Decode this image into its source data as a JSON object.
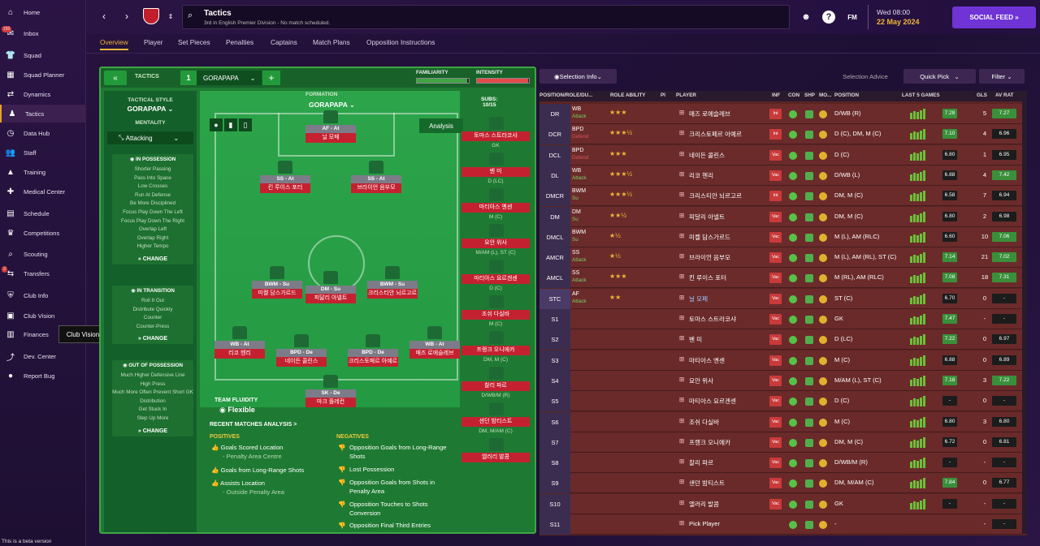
{
  "sidebar": {
    "items": [
      {
        "label": "Home"
      },
      {
        "label": "Inbox",
        "badge": "150"
      },
      {
        "label": "Squad"
      },
      {
        "label": "Squad Planner"
      },
      {
        "label": "Dynamics"
      },
      {
        "label": "Tactics"
      },
      {
        "label": "Data Hub"
      },
      {
        "label": "Staff"
      },
      {
        "label": "Training"
      },
      {
        "label": "Medical Center"
      },
      {
        "label": "Schedule"
      },
      {
        "label": "Competitions"
      },
      {
        "label": "Scouting"
      },
      {
        "label": "Transfers",
        "badge": "3"
      },
      {
        "label": "Club Info"
      },
      {
        "label": "Club Vision"
      },
      {
        "label": "Finances"
      },
      {
        "label": "Dev. Center"
      },
      {
        "label": "Report Bug"
      }
    ],
    "tooltip": "Club Vision",
    "beta": "This is a beta version"
  },
  "header": {
    "title": "Tactics",
    "subtitle": "3rd in English Premier Division - No match scheduled.",
    "date_day": "Wed 08:00",
    "date": "22 May 2024",
    "social": "SOCIAL FEED"
  },
  "tabs": [
    {
      "label": "Overview"
    },
    {
      "label": "Player"
    },
    {
      "label": "Set Pieces"
    },
    {
      "label": "Penalties"
    },
    {
      "label": "Captains"
    },
    {
      "label": "Match Plans"
    },
    {
      "label": "Opposition Instructions"
    }
  ],
  "tactics": {
    "label": "TACTICS",
    "number": "1",
    "name": "GORAPAPA",
    "familiarity": "FAMILIARITY",
    "intensity": "INTENSITY",
    "familiarity_level": 0.97,
    "intensity_level": 0.98,
    "style_title": "TACTICAL STYLE",
    "style": "GORAPAPA",
    "mentality_title": "MENTALITY",
    "mentality": "Attacking",
    "in_possession": {
      "title": "IN POSSESSION",
      "items": [
        "Shorter Passing",
        "Pass Into Space",
        "Low Crosses",
        "Run At Defense",
        "Be More Disciplined",
        "Focus Play Down The Left",
        "Focus Play Down The Right",
        "Overlap Left",
        "Overlap Right",
        "Higher Tempo"
      ]
    },
    "in_transition": {
      "title": "IN TRANSITION",
      "items": [
        "Roll It Out",
        "Distribute Quickly",
        "Counter",
        "Counter-Press"
      ]
    },
    "out_possession": {
      "title": "OUT OF POSSESSION",
      "items": [
        "Much Higher Defensive Line",
        "High Press",
        "Much More Often Prevent Short GK Distribution",
        "Get Stuck In",
        "Step Up More"
      ]
    },
    "change": "CHANGE",
    "formation_label": "FORMATION",
    "formation": "GORAPAPA",
    "analysis": "Analysis",
    "subs_label": "SUBS:",
    "subs_count": "10/15",
    "fluidity_label": "TEAM FLUIDITY",
    "fluidity": "Flexible",
    "recent": "RECENT MATCHES ANALYSIS >",
    "positives_label": "POSITIVES",
    "negatives_label": "NEGATIVES",
    "positives": [
      {
        "t": "Goals Scored Location",
        "s": "- Penalty Area Centre"
      },
      {
        "t": "Goals from Long-Range Shots",
        "s": ""
      },
      {
        "t": "Assists Location",
        "s": "- Outside Penalty Area"
      }
    ],
    "negatives": [
      {
        "t": "Opposition Goals from Long-Range Shots"
      },
      {
        "t": "Lost Possession"
      },
      {
        "t": "Opposition Goals from Shots in Penalty Area"
      },
      {
        "t": "Opposition Touches to Shots Conversion"
      },
      {
        "t": "Opposition Final Third Entries"
      }
    ]
  },
  "pitch_players": [
    {
      "role": "AF - At",
      "name": "닐 모페"
    },
    {
      "role": "SS - At",
      "name": "킨 루이스 포터"
    },
    {
      "role": "SS - At",
      "name": "브라이언 음부모"
    },
    {
      "role": "BWM - Su",
      "name": "미켈 담스가르드"
    },
    {
      "role": "DM - Su",
      "name": "피달리 아넬트"
    },
    {
      "role": "BWM - Su",
      "name": "크리스티안 뇌르고르"
    },
    {
      "role": "WB - At",
      "name": "리코 헨리"
    },
    {
      "role": "BPD - De",
      "name": "네이든 콜린스"
    },
    {
      "role": "BPD - De",
      "name": "크리스토페르 아예르"
    },
    {
      "role": "WB - At",
      "name": "매즈 로에슬레브"
    },
    {
      "role": "SK - De",
      "name": "마크 플레컨"
    }
  ],
  "subs": [
    {
      "name": "토마스 스트라코샤",
      "pos": "GK"
    },
    {
      "name": "벤 미",
      "pos": "D (LC)"
    },
    {
      "name": "마티아스 옌센",
      "pos": "M (C)"
    },
    {
      "name": "요안 위사",
      "pos": "M/AM (L), ST (C)"
    },
    {
      "name": "마티아스 요르겐센",
      "pos": "D (C)"
    },
    {
      "name": "조쉬 다실바",
      "pos": "M (C)"
    },
    {
      "name": "프랭크 오니에카",
      "pos": "DM, M (C)"
    },
    {
      "name": "찰리 파르",
      "pos": "D/WB/M (R)"
    },
    {
      "name": "샌던 밤티스트",
      "pos": "DM, M/AM (C)"
    },
    {
      "name": "엘러리 발콤",
      "pos": ""
    }
  ],
  "list_controls": {
    "selection_info": "Selection Info",
    "selection_advice": "Selection Advice",
    "quick_pick": "Quick Pick",
    "filter": "Filter"
  },
  "columns": [
    "POSITION/ROLE/DU...",
    "ROLE ABILITY",
    "PI",
    "PLAYER",
    "INF",
    "CON",
    "SHP",
    "MO...",
    "POSITION",
    "LAST 5 GAMES",
    "GLS",
    "AV RAT"
  ],
  "rows": [
    {
      "pos": "DR",
      "role": "WB",
      "duty": "Attack",
      "stars": "★★★",
      "name": "매즈 로에슬레브",
      "inf": "Int",
      "position": "D/WB (R)",
      "rat": "7.28",
      "gls": "5",
      "av": "7.27"
    },
    {
      "pos": "DCR",
      "role": "BPD",
      "duty": "Defend",
      "stars": "★★★½",
      "name": "크리스토페르 아예르",
      "inf": "Int",
      "position": "D (C), DM, M (C)",
      "rat": "7.10",
      "gls": "4",
      "av": "6.96"
    },
    {
      "pos": "DCL",
      "role": "BPD",
      "duty": "Defend",
      "stars": "★★★",
      "name": "네이든 콜린스",
      "inf": "Vac",
      "position": "D (C)",
      "rat": "6.80",
      "gls": "1",
      "av": "6.95"
    },
    {
      "pos": "DL",
      "role": "WB",
      "duty": "Attack",
      "stars": "★★★½",
      "name": "리코 헨리",
      "inf": "Vac",
      "position": "D/WB (L)",
      "rat": "6.88",
      "gls": "4",
      "av": "7.42"
    },
    {
      "pos": "DMCR",
      "role": "BWM",
      "duty": "Su",
      "stars": "★★★½",
      "name": "크리스티안 뇌르고르",
      "inf": "Int",
      "position": "DM, M (C)",
      "rat": "6.58",
      "gls": "7",
      "av": "6.94"
    },
    {
      "pos": "DM",
      "role": "DM",
      "duty": "Su",
      "stars": "★★½",
      "name": "피달리 아넬트",
      "inf": "Vac",
      "position": "DM, M (C)",
      "rat": "6.80",
      "gls": "2",
      "av": "6.98"
    },
    {
      "pos": "DMCL",
      "role": "BWM",
      "duty": "Su",
      "stars": "★½",
      "name": "미켈 담스가르드",
      "inf": "Vac",
      "position": "M (L), AM (RLC)",
      "rat": "6.60",
      "gls": "10",
      "av": "7.06"
    },
    {
      "pos": "AMCR",
      "role": "SS",
      "duty": "Attack",
      "stars": "★½",
      "name": "브라이언 음부모",
      "inf": "Vac",
      "position": "M (L), AM (RL), ST (C)",
      "rat": "7.14",
      "gls": "21",
      "av": "7.02"
    },
    {
      "pos": "AMCL",
      "role": "SS",
      "duty": "Attack",
      "stars": "★★★",
      "name": "킨 루이스 포터",
      "inf": "Vac",
      "position": "M (RL), AM (RLC)",
      "rat": "7.08",
      "gls": "18",
      "av": "7.31"
    },
    {
      "pos": "STC",
      "role": "AF",
      "duty": "Attack",
      "stars": "★★",
      "name": "닐 모페",
      "inf": "Vac",
      "position": "ST (C)",
      "rat": "6.70",
      "gls": "0",
      "av": "-"
    },
    {
      "pos": "S1",
      "role": "",
      "duty": "",
      "stars": "",
      "name": "토마스 스트라코샤",
      "inf": "Vac",
      "position": "GK",
      "rat": "7.47",
      "gls": "-",
      "av": "-"
    },
    {
      "pos": "S2",
      "role": "",
      "duty": "",
      "stars": "",
      "name": "벤 미",
      "inf": "Vac",
      "position": "D (LC)",
      "rat": "7.22",
      "gls": "0",
      "av": "6.97"
    },
    {
      "pos": "S3",
      "role": "",
      "duty": "",
      "stars": "",
      "name": "마티아스 옌센",
      "inf": "Vac",
      "position": "M (C)",
      "rat": "6.88",
      "gls": "0",
      "av": "6.89"
    },
    {
      "pos": "S4",
      "role": "",
      "duty": "",
      "stars": "",
      "name": "요안 위사",
      "inf": "Vac",
      "position": "M/AM (L), ST (C)",
      "rat": "7.18",
      "gls": "3",
      "av": "7.22"
    },
    {
      "pos": "S5",
      "role": "",
      "duty": "",
      "stars": "",
      "name": "마티아스 요르겐센",
      "inf": "Vac",
      "position": "D (C)",
      "rat": "-",
      "gls": "0",
      "av": "-"
    },
    {
      "pos": "S6",
      "role": "",
      "duty": "",
      "stars": "",
      "name": "조쉬 다실바",
      "inf": "Vac",
      "position": "M (C)",
      "rat": "6.80",
      "gls": "3",
      "av": "6.80"
    },
    {
      "pos": "S7",
      "role": "",
      "duty": "",
      "stars": "",
      "name": "프랭크 오니에카",
      "inf": "Vac",
      "position": "DM, M (C)",
      "rat": "6.72",
      "gls": "0",
      "av": "6.81"
    },
    {
      "pos": "S8",
      "role": "",
      "duty": "",
      "stars": "",
      "name": "찰리 파르",
      "inf": "Vac",
      "position": "D/WB/M (R)",
      "rat": "-",
      "gls": "-",
      "av": "-"
    },
    {
      "pos": "S9",
      "role": "",
      "duty": "",
      "stars": "",
      "name": "샌던 밤티스트",
      "inf": "Vac",
      "position": "DM, M/AM (C)",
      "rat": "7.84",
      "gls": "0",
      "av": "6.77"
    },
    {
      "pos": "S10",
      "role": "",
      "duty": "",
      "stars": "",
      "name": "엘러리 발콤",
      "inf": "Vac",
      "position": "GK",
      "rat": "-",
      "gls": "-",
      "av": "-"
    },
    {
      "pos": "S11",
      "role": "",
      "duty": "",
      "stars": "",
      "name": "Pick Player",
      "inf": "",
      "position": "-",
      "rat": "",
      "gls": "-",
      "av": "-"
    }
  ]
}
